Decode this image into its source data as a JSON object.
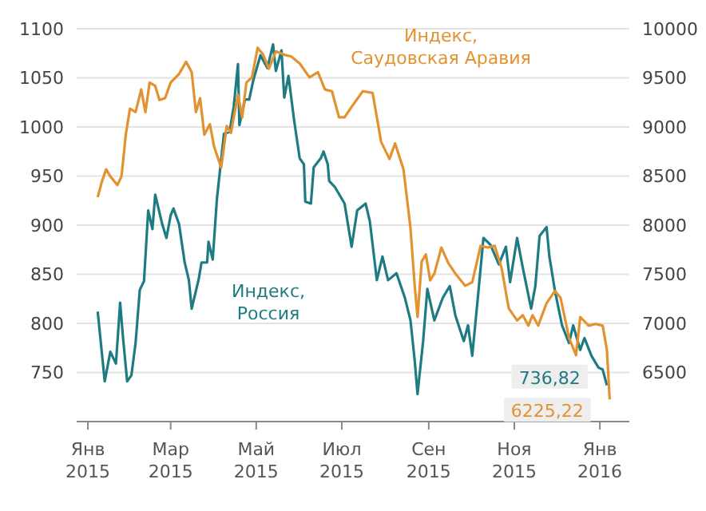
{
  "chart_data": {
    "type": "line",
    "legend": false,
    "grid": "y",
    "marker": "none",
    "line_style": "solid",
    "xlim": [
      "2014-12-24",
      "2016-01-22"
    ],
    "xticks": [
      {
        "value": "2015-01-01",
        "label": "Янв 2015"
      },
      {
        "value": "2015-03-01",
        "label": "Мар 2015"
      },
      {
        "value": "2015-05-01",
        "label": "Май 2015"
      },
      {
        "value": "2015-07-01",
        "label": "Июл 2015"
      },
      {
        "value": "2015-09-01",
        "label": "Сен 2015"
      },
      {
        "value": "2015-11-01",
        "label": "Ноя 2015"
      },
      {
        "value": "2016-01-01",
        "label": "Янв 2016"
      }
    ],
    "ylim": [
      700,
      1100
    ],
    "yticks": [
      750,
      800,
      850,
      900,
      950,
      1000,
      1050,
      1100
    ],
    "y2lim": [
      6000,
      10000
    ],
    "y2ticks": [
      6500,
      7000,
      7500,
      8000,
      8500,
      9000,
      9500,
      10000
    ],
    "series": [
      {
        "name": "Индекс, Россия",
        "color": "#1e7b82",
        "axis": "y",
        "x": [
          "2015-01-08",
          "2015-01-13",
          "2015-01-17",
          "2015-01-21",
          "2015-01-24",
          "2015-01-26",
          "2015-01-29",
          "2015-02-01",
          "2015-02-04",
          "2015-02-07",
          "2015-02-10",
          "2015-02-13",
          "2015-02-16",
          "2015-02-18",
          "2015-02-23",
          "2015-02-26",
          "2015-03-01",
          "2015-03-03",
          "2015-03-07",
          "2015-03-11",
          "2015-03-14",
          "2015-03-16",
          "2015-03-21",
          "2015-03-23",
          "2015-03-27",
          "2015-03-28",
          "2015-03-31",
          "2015-04-03",
          "2015-04-08",
          "2015-04-12",
          "2015-04-15",
          "2015-04-18",
          "2015-04-19",
          "2015-04-23",
          "2015-04-26",
          "2015-04-29",
          "2015-05-04",
          "2015-05-09",
          "2015-05-13",
          "2015-05-15",
          "2015-05-19",
          "2015-05-21",
          "2015-05-24",
          "2015-05-28",
          "2015-06-01",
          "2015-06-04",
          "2015-06-05",
          "2015-06-09",
          "2015-06-11",
          "2015-06-16",
          "2015-06-18",
          "2015-06-21",
          "2015-06-22",
          "2015-06-26",
          "2015-07-03",
          "2015-07-08",
          "2015-07-12",
          "2015-07-18",
          "2015-07-21",
          "2015-07-26",
          "2015-07-30",
          "2015-08-03",
          "2015-08-09",
          "2015-08-15",
          "2015-08-19",
          "2015-08-22",
          "2015-08-24",
          "2015-08-28",
          "2015-08-31",
          "2015-09-05",
          "2015-09-11",
          "2015-09-16",
          "2015-09-20",
          "2015-09-26",
          "2015-09-29",
          "2015-10-02",
          "2015-10-06",
          "2015-10-10",
          "2015-10-15",
          "2015-10-21",
          "2015-10-26",
          "2015-10-29",
          "2015-11-03",
          "2015-11-07",
          "2015-11-13",
          "2015-11-16",
          "2015-11-19",
          "2015-11-24",
          "2015-11-26",
          "2015-11-30",
          "2015-12-05",
          "2015-12-10",
          "2015-12-13",
          "2015-12-18",
          "2015-12-21",
          "2015-12-26",
          "2015-12-31",
          "2016-01-03",
          "2016-01-06"
        ],
        "values": [
          812,
          741,
          771,
          759,
          821,
          786,
          741,
          747,
          780,
          834,
          843,
          915,
          896,
          931,
          901,
          887,
          910,
          917,
          901,
          862,
          844,
          815,
          845,
          862,
          862,
          883,
          865,
          927,
          993,
          995,
          1021,
          1064,
          1002,
          1028,
          1028,
          1048,
          1073,
          1060,
          1084,
          1057,
          1078,
          1030,
          1052,
          1007,
          968,
          962,
          924,
          922,
          959,
          968,
          975,
          962,
          945,
          939,
          922,
          878,
          915,
          922,
          904,
          844,
          868,
          844,
          851,
          826,
          803,
          762,
          728,
          782,
          835,
          803,
          826,
          838,
          808,
          782,
          798,
          767,
          826,
          887,
          880,
          860,
          878,
          842,
          887,
          857,
          815,
          838,
          889,
          898,
          868,
          833,
          798,
          780,
          798,
          773,
          785,
          767,
          755,
          753,
          736.82
        ],
        "value_labels": [
          null,
          null,
          null,
          null,
          null,
          null,
          null,
          null,
          null,
          null,
          null,
          null,
          null,
          null,
          null,
          null,
          null,
          null,
          null,
          null,
          null,
          null,
          null,
          null,
          null,
          null,
          null,
          null,
          null,
          null,
          null,
          null,
          null,
          null,
          null,
          null,
          null,
          null,
          null,
          null,
          null,
          null,
          null,
          null,
          null,
          null,
          null,
          null,
          null,
          null,
          null,
          null,
          null,
          null,
          null,
          null,
          null,
          null,
          null,
          null,
          null,
          null,
          null,
          null,
          null,
          null,
          null,
          null,
          null,
          null,
          null,
          null,
          null,
          null,
          null,
          null,
          null,
          null,
          null,
          null,
          null,
          null,
          null,
          null,
          null,
          null,
          null,
          null,
          null,
          null,
          null,
          null,
          null,
          null,
          null,
          null,
          null,
          null,
          "736,82"
        ]
      },
      {
        "name": "Индекс, Саудовская Аравия",
        "color": "#e2922e",
        "axis": "y2",
        "x": [
          "2015-01-08",
          "2015-01-11",
          "2015-01-14",
          "2015-01-17",
          "2015-01-22",
          "2015-01-25",
          "2015-01-28",
          "2015-01-31",
          "2015-02-04",
          "2015-02-08",
          "2015-02-11",
          "2015-02-14",
          "2015-02-18",
          "2015-02-21",
          "2015-02-25",
          "2015-03-01",
          "2015-03-07",
          "2015-03-12",
          "2015-03-16",
          "2015-03-19",
          "2015-03-22",
          "2015-03-25",
          "2015-03-29",
          "2015-04-01",
          "2015-04-06",
          "2015-04-10",
          "2015-04-13",
          "2015-04-18",
          "2015-04-21",
          "2015-04-24",
          "2015-04-28",
          "2015-05-02",
          "2015-05-06",
          "2015-05-10",
          "2015-05-15",
          "2015-05-21",
          "2015-05-26",
          "2015-06-01",
          "2015-06-08",
          "2015-06-14",
          "2015-06-19",
          "2015-06-24",
          "2015-06-29",
          "2015-07-03",
          "2015-07-08",
          "2015-07-16",
          "2015-07-23",
          "2015-07-29",
          "2015-08-04",
          "2015-08-08",
          "2015-08-14",
          "2015-08-19",
          "2015-08-22",
          "2015-08-24",
          "2015-08-27",
          "2015-08-30",
          "2015-09-02",
          "2015-09-05",
          "2015-09-10",
          "2015-09-15",
          "2015-09-20",
          "2015-09-27",
          "2015-10-02",
          "2015-10-08",
          "2015-10-13",
          "2015-10-18",
          "2015-10-23",
          "2015-10-28",
          "2015-11-03",
          "2015-11-07",
          "2015-11-11",
          "2015-11-14",
          "2015-11-18",
          "2015-11-24",
          "2015-11-30",
          "2015-12-04",
          "2015-12-10",
          "2015-12-15",
          "2015-12-18",
          "2015-12-24",
          "2015-12-29",
          "2016-01-03",
          "2016-01-06",
          "2016-01-08"
        ],
        "values": [
          8285,
          8444,
          8568,
          8497,
          8409,
          8497,
          8921,
          9187,
          9151,
          9381,
          9151,
          9452,
          9417,
          9275,
          9293,
          9452,
          9540,
          9664,
          9558,
          9151,
          9293,
          8921,
          9028,
          8798,
          8586,
          9010,
          8939,
          9328,
          9098,
          9452,
          9505,
          9806,
          9735,
          9593,
          9770,
          9735,
          9717,
          9646,
          9505,
          9558,
          9381,
          9364,
          9098,
          9098,
          9204,
          9364,
          9346,
          8851,
          8674,
          8833,
          8568,
          7967,
          7383,
          7065,
          7631,
          7702,
          7437,
          7507,
          7772,
          7613,
          7507,
          7383,
          7419,
          7790,
          7772,
          7790,
          7560,
          7154,
          7030,
          7083,
          6977,
          7083,
          6977,
          7206,
          7330,
          7260,
          6853,
          6676,
          7065,
          6977,
          6994,
          6977,
          6729,
          6225.22
        ],
        "value_labels": [
          null,
          null,
          null,
          null,
          null,
          null,
          null,
          null,
          null,
          null,
          null,
          null,
          null,
          null,
          null,
          null,
          null,
          null,
          null,
          null,
          null,
          null,
          null,
          null,
          null,
          null,
          null,
          null,
          null,
          null,
          null,
          null,
          null,
          null,
          null,
          null,
          null,
          null,
          null,
          null,
          null,
          null,
          null,
          null,
          null,
          null,
          null,
          null,
          null,
          null,
          null,
          null,
          null,
          null,
          null,
          null,
          null,
          null,
          null,
          null,
          null,
          null,
          null,
          null,
          null,
          null,
          null,
          null,
          null,
          null,
          null,
          null,
          null,
          null,
          null,
          null,
          null,
          null,
          null,
          null,
          null,
          null,
          null,
          "6225,22"
        ]
      }
    ]
  }
}
